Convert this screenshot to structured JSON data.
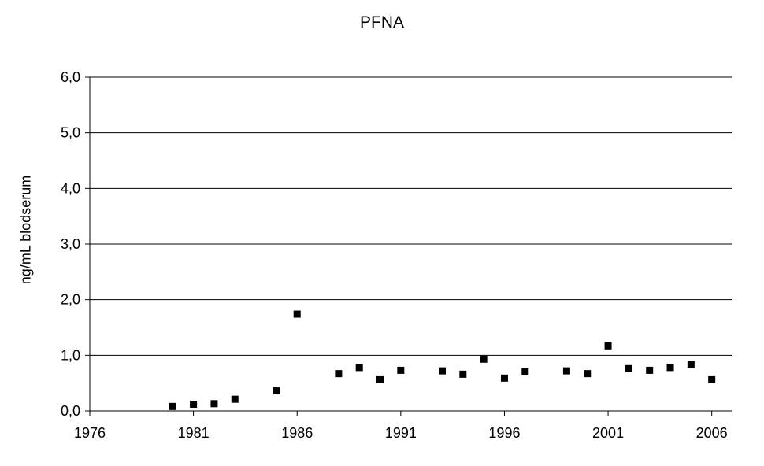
{
  "chart_data": {
    "type": "scatter",
    "title": "PFNA",
    "xlabel": "",
    "ylabel": "ng/mL blodserum",
    "xlim": [
      1976,
      2007
    ],
    "ylim": [
      0,
      6
    ],
    "xticks": [
      1976,
      1981,
      1986,
      1991,
      1996,
      2001,
      2006
    ],
    "xtick_labels": [
      "1976",
      "1981",
      "1986",
      "1991",
      "1996",
      "2001",
      "2006"
    ],
    "yticks": [
      0,
      1,
      2,
      3,
      4,
      5,
      6
    ],
    "ytick_labels": [
      "0,0",
      "1,0",
      "2,0",
      "3,0",
      "4,0",
      "5,0",
      "6,0"
    ],
    "grid": "horizontal",
    "marker": "square",
    "marker_color": "#000000",
    "series": [
      {
        "x": [
          1980,
          1981,
          1982,
          1983,
          1985,
          1986,
          1988,
          1989,
          1990,
          1991,
          1993,
          1994,
          1995,
          1996,
          1997,
          1999,
          2000,
          2001,
          2002,
          2003,
          2004,
          2005,
          2006
        ],
        "y": [
          0.08,
          0.12,
          0.13,
          0.21,
          0.36,
          1.74,
          0.67,
          0.78,
          0.56,
          0.73,
          0.72,
          0.66,
          0.93,
          0.59,
          0.7,
          0.72,
          0.67,
          1.17,
          0.76,
          0.73,
          0.78,
          0.84,
          0.56
        ]
      }
    ]
  }
}
